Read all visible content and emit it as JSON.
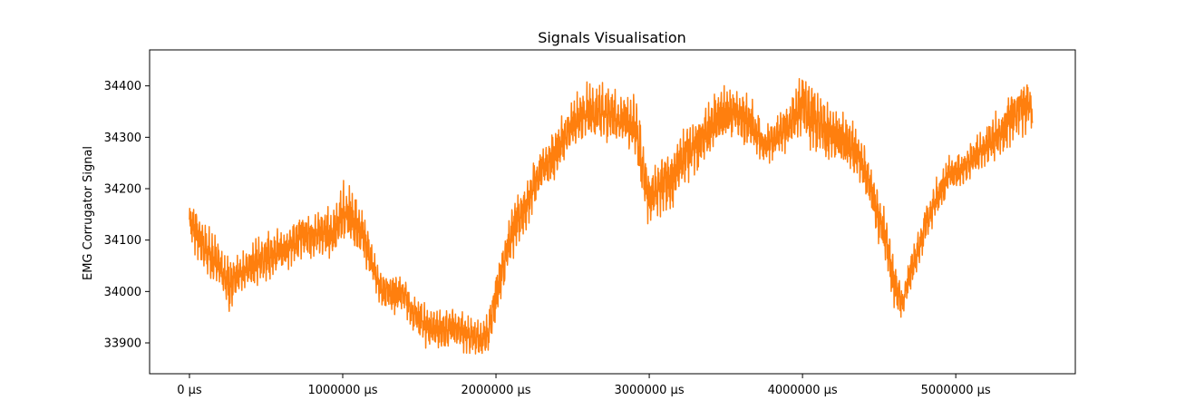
{
  "chart_data": {
    "type": "line",
    "title": "Signals Visualisation",
    "xlabel": "",
    "ylabel": "EMG Corrugator Signal",
    "x_unit": "µs",
    "xlim": [
      -260000,
      5780000
    ],
    "ylim": [
      33840,
      34470
    ],
    "x_ticks": [
      0,
      1000000,
      2000000,
      3000000,
      4000000,
      5000000
    ],
    "x_tick_labels": [
      "0 µs",
      "1000000 µs",
      "2000000 µs",
      "3000000 µs",
      "4000000 µs",
      "5000000 µs"
    ],
    "y_ticks": [
      33900,
      34000,
      34100,
      34200,
      34300,
      34400
    ],
    "y_tick_labels": [
      "33900",
      "34000",
      "34100",
      "34200",
      "34300",
      "34400"
    ],
    "grid": false,
    "series": [
      {
        "color": "#ff7f0e",
        "x": [
          0,
          50000,
          100000,
          150000,
          200000,
          250000,
          300000,
          350000,
          400000,
          450000,
          500000,
          550000,
          600000,
          650000,
          700000,
          750000,
          800000,
          850000,
          900000,
          950000,
          1000000,
          1050000,
          1100000,
          1150000,
          1200000,
          1250000,
          1300000,
          1350000,
          1400000,
          1450000,
          1500000,
          1550000,
          1600000,
          1650000,
          1700000,
          1750000,
          1800000,
          1850000,
          1900000,
          1950000,
          2000000,
          2050000,
          2100000,
          2150000,
          2200000,
          2250000,
          2300000,
          2350000,
          2400000,
          2450000,
          2500000,
          2550000,
          2600000,
          2650000,
          2700000,
          2750000,
          2800000,
          2850000,
          2900000,
          2950000,
          3000000,
          3050000,
          3100000,
          3150000,
          3200000,
          3250000,
          3300000,
          3350000,
          3400000,
          3450000,
          3500000,
          3550000,
          3600000,
          3650000,
          3700000,
          3750000,
          3800000,
          3850000,
          3900000,
          3950000,
          4000000,
          4050000,
          4100000,
          4150000,
          4200000,
          4250000,
          4300000,
          4350000,
          4400000,
          4450000,
          4500000,
          4550000,
          4600000,
          4650000,
          4700000,
          4750000,
          4800000,
          4850000,
          4900000,
          4950000,
          5000000,
          5050000,
          5100000,
          5150000,
          5200000,
          5250000,
          5300000,
          5350000,
          5400000,
          5450000,
          5500000
        ],
        "y_min": [
          34105,
          34055,
          34035,
          34005,
          34010,
          33950,
          33975,
          34000,
          34005,
          34010,
          34005,
          34020,
          34030,
          34035,
          34050,
          34060,
          34060,
          34065,
          34055,
          34065,
          34080,
          34090,
          34070,
          34040,
          34010,
          33960,
          33955,
          33950,
          33960,
          33925,
          33900,
          33885,
          33880,
          33880,
          33885,
          33885,
          33875,
          33870,
          33870,
          33880,
          33940,
          34000,
          34050,
          34090,
          34110,
          34160,
          34190,
          34200,
          34210,
          34240,
          34270,
          34280,
          34290,
          34290,
          34280,
          34285,
          34280,
          34270,
          34240,
          34180,
          34120,
          34140,
          34150,
          34140,
          34180,
          34200,
          34220,
          34240,
          34260,
          34270,
          34280,
          34290,
          34280,
          34270,
          34260,
          34240,
          34250,
          34260,
          34270,
          34280,
          34290,
          34270,
          34260,
          34250,
          34240,
          34230,
          34230,
          34210,
          34180,
          34140,
          34080,
          34030,
          33960,
          33940,
          33990,
          34030,
          34080,
          34120,
          34150,
          34180,
          34190,
          34200,
          34210,
          34230,
          34240,
          34250,
          34260,
          34280,
          34290,
          34300,
          34310
        ],
        "y_max": [
          34175,
          34170,
          34140,
          34120,
          34100,
          34080,
          34070,
          34080,
          34100,
          34110,
          34120,
          34130,
          34130,
          34140,
          34150,
          34160,
          34160,
          34160,
          34170,
          34180,
          34220,
          34210,
          34180,
          34150,
          34080,
          34050,
          34040,
          34040,
          34030,
          34000,
          33990,
          33980,
          33970,
          33970,
          33980,
          33975,
          33960,
          33955,
          33950,
          33960,
          34050,
          34100,
          34180,
          34200,
          34220,
          34260,
          34290,
          34310,
          34330,
          34360,
          34380,
          34400,
          34410,
          34400,
          34420,
          34400,
          34390,
          34400,
          34410,
          34330,
          34240,
          34260,
          34280,
          34290,
          34320,
          34340,
          34350,
          34360,
          34380,
          34400,
          34410,
          34410,
          34400,
          34390,
          34360,
          34320,
          34340,
          34350,
          34370,
          34400,
          34440,
          34420,
          34400,
          34380,
          34370,
          34360,
          34350,
          34330,
          34300,
          34250,
          34200,
          34150,
          34070,
          34010,
          34080,
          34120,
          34180,
          34210,
          34240,
          34270,
          34270,
          34280,
          34300,
          34310,
          34330,
          34350,
          34360,
          34390,
          34410,
          34420,
          34400
        ]
      }
    ]
  }
}
